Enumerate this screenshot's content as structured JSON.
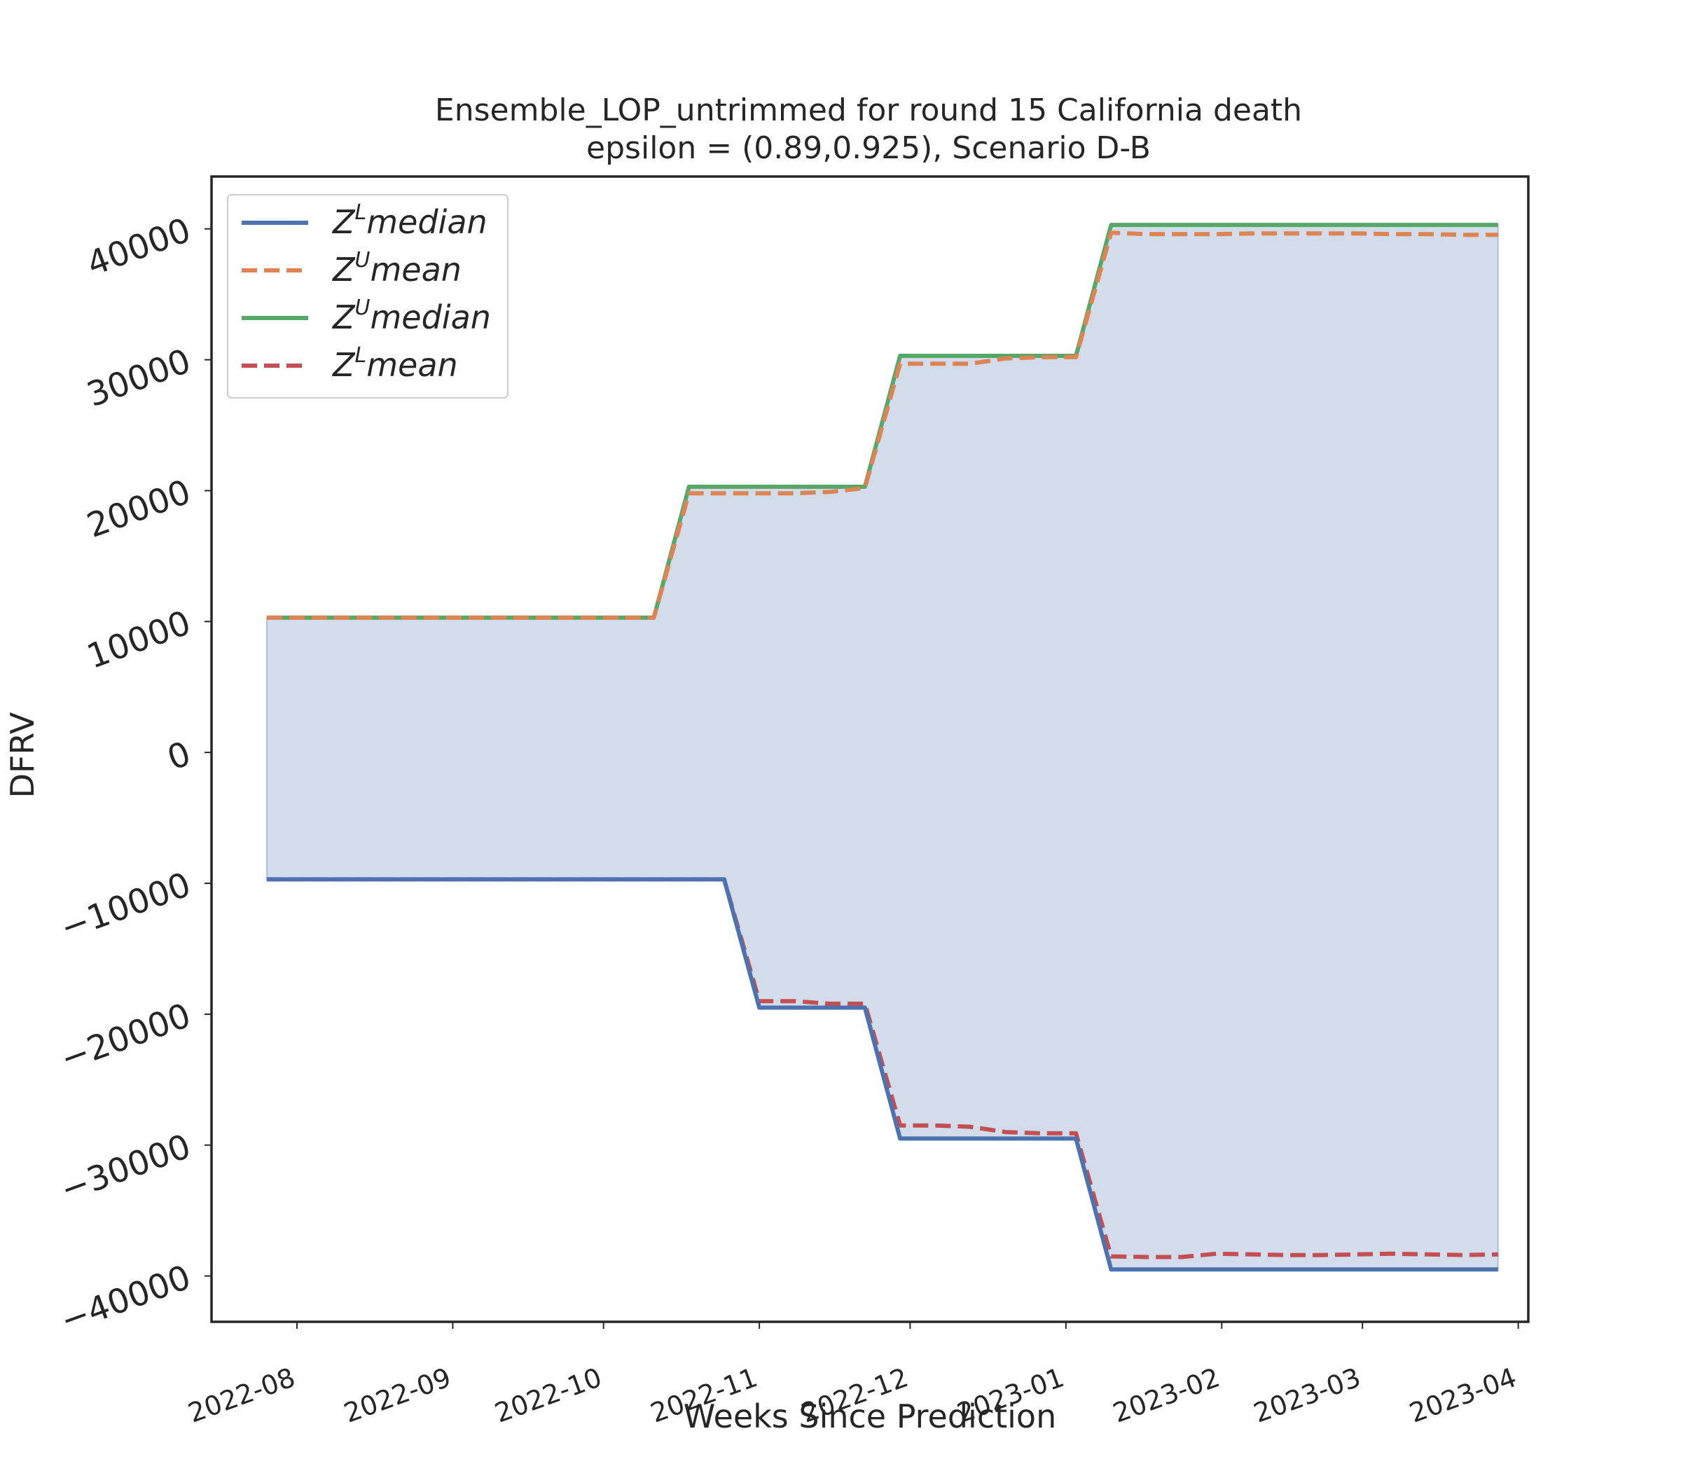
{
  "chart_data": {
    "type": "line",
    "title": "Ensemble_LOP_untrimmed for round 15 California  death",
    "subtitle": "epsilon = (0.89,0.925), Scenario D-B",
    "xlabel": "Weeks Since Prediction",
    "ylabel": "DFRV",
    "x_tick_labels": [
      "2022-08",
      "2022-09",
      "2022-10",
      "2022-11",
      "2022-12",
      "2023-01",
      "2023-02",
      "2023-03",
      "2023-04"
    ],
    "y_ticks": [
      -40000,
      -30000,
      -20000,
      -10000,
      0,
      10000,
      20000,
      30000,
      40000
    ],
    "xlim": [
      "2022-07-15",
      "2023-04-03"
    ],
    "ylim": [
      -43500,
      44000
    ],
    "x": [
      "2022-07-26",
      "2022-08-02",
      "2022-08-09",
      "2022-08-16",
      "2022-08-23",
      "2022-08-30",
      "2022-09-06",
      "2022-09-13",
      "2022-09-20",
      "2022-09-27",
      "2022-10-04",
      "2022-10-11",
      "2022-10-18",
      "2022-10-25",
      "2022-11-01",
      "2022-11-08",
      "2022-11-15",
      "2022-11-22",
      "2022-11-29",
      "2022-12-06",
      "2022-12-13",
      "2022-12-20",
      "2022-12-27",
      "2023-01-03",
      "2023-01-10",
      "2023-01-17",
      "2023-01-24",
      "2023-01-31",
      "2023-02-07",
      "2023-02-14",
      "2023-02-21",
      "2023-02-28",
      "2023-03-07",
      "2023-03-14",
      "2023-03-21",
      "2023-03-28"
    ],
    "series": [
      {
        "name": "Z^L median",
        "label_base": "Z",
        "label_sup": "L",
        "label_text": "median",
        "color": "#4c72b0",
        "dash": "solid",
        "values": [
          -9700,
          -9700,
          -9700,
          -9700,
          -9700,
          -9700,
          -9700,
          -9700,
          -9700,
          -9700,
          -9700,
          -9700,
          -9700,
          -9700,
          -19500,
          -19500,
          -19500,
          -19500,
          -29500,
          -29500,
          -29500,
          -29500,
          -29500,
          -29500,
          -39500,
          -39500,
          -39500,
          -39500,
          -39500,
          -39500,
          -39500,
          -39500,
          -39500,
          -39500,
          -39500,
          -39500
        ]
      },
      {
        "name": "Z^U mean",
        "label_base": "Z",
        "label_sup": "U",
        "label_text": "mean",
        "color": "#dd8452",
        "dash": "dashed",
        "values": [
          10300,
          10300,
          10300,
          10300,
          10300,
          10300,
          10300,
          10300,
          10300,
          10300,
          10300,
          10300,
          19800,
          19800,
          19800,
          19800,
          19900,
          20200,
          29700,
          29700,
          29700,
          30100,
          30200,
          30200,
          39700,
          39600,
          39600,
          39600,
          39650,
          39650,
          39650,
          39650,
          39600,
          39600,
          39550,
          39550
        ]
      },
      {
        "name": "Z^U median",
        "label_base": "Z",
        "label_sup": "U",
        "label_text": "median",
        "color": "#55a868",
        "dash": "solid",
        "values": [
          10300,
          10300,
          10300,
          10300,
          10300,
          10300,
          10300,
          10300,
          10300,
          10300,
          10300,
          10300,
          20300,
          20300,
          20300,
          20300,
          20300,
          20300,
          30300,
          30300,
          30300,
          30300,
          30300,
          30300,
          40300,
          40300,
          40300,
          40300,
          40300,
          40300,
          40300,
          40300,
          40300,
          40300,
          40300,
          40300
        ]
      },
      {
        "name": "Z^L mean",
        "label_base": "Z",
        "label_sup": "L",
        "label_text": "mean",
        "color": "#c44e52",
        "dash": "dashed",
        "values": [
          -9700,
          -9700,
          -9700,
          -9700,
          -9700,
          -9700,
          -9700,
          -9700,
          -9700,
          -9700,
          -9700,
          -9700,
          -9700,
          -9700,
          -19000,
          -19000,
          -19200,
          -19200,
          -28500,
          -28500,
          -28600,
          -29000,
          -29100,
          -29100,
          -38500,
          -38550,
          -38550,
          -38300,
          -38350,
          -38400,
          -38400,
          -38350,
          -38300,
          -38350,
          -38400,
          -38350
        ]
      }
    ],
    "fill_between": {
      "lower": "Z^L median",
      "upper": "Z^U median",
      "color": "#4c72b0",
      "alpha": 0.25
    },
    "legend": "top-left",
    "grid": false
  }
}
